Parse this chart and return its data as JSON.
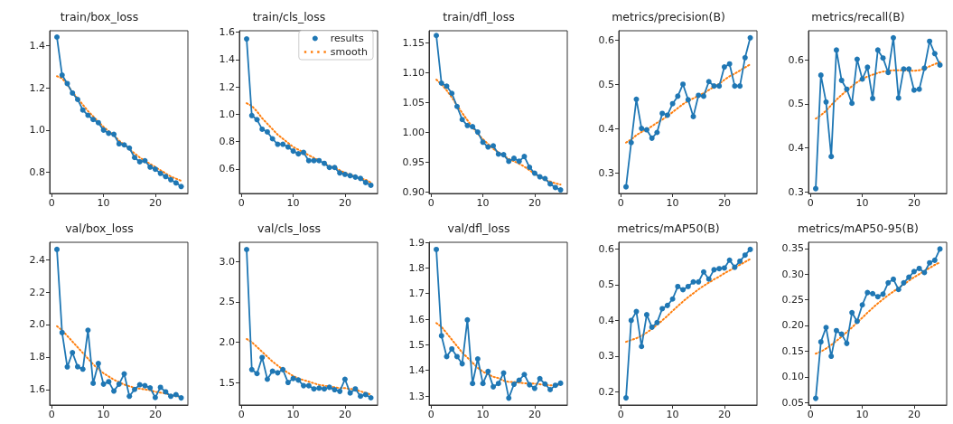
{
  "chart_data": [
    {
      "type": "line",
      "title": "train/box_loss",
      "x": [
        1,
        2,
        3,
        4,
        5,
        6,
        7,
        8,
        9,
        10,
        11,
        12,
        13,
        14,
        15,
        16,
        17,
        18,
        19,
        20,
        21,
        22,
        23,
        24,
        25
      ],
      "xlim": [
        -0.4,
        26.3
      ],
      "xticks": [
        0,
        10,
        20
      ],
      "ylim": [
        0.7,
        1.47
      ],
      "yticks": [
        0.8,
        {
          "value": 1,
          "label": "1.0"
        },
        1.2,
        1.4
      ],
      "legend": false,
      "series": [
        {
          "color": "#1f77b4",
          "marker": "circle",
          "line_style": "solid",
          "values": [
            1.44,
            1.26,
            1.22,
            1.175,
            1.145,
            1.095,
            1.07,
            1.05,
            1.035,
            1.0,
            0.985,
            0.98,
            0.935,
            0.93,
            0.915,
            0.87,
            0.85,
            0.855,
            0.825,
            0.815,
            0.795,
            0.78,
            0.765,
            0.75,
            0.733
          ]
        },
        {
          "color": "#ff7f0e",
          "marker": "none",
          "line_style": "dotted",
          "values": [
            1.255,
            1.245,
            1.215,
            1.18,
            1.15,
            1.12,
            1.09,
            1.065,
            1.04,
            1.015,
            0.995,
            0.975,
            0.95,
            0.93,
            0.91,
            0.89,
            0.87,
            0.855,
            0.84,
            0.825,
            0.81,
            0.795,
            0.78,
            0.77,
            0.76
          ]
        }
      ]
    },
    {
      "type": "line",
      "title": "train/cls_loss",
      "x": [
        1,
        2,
        3,
        4,
        5,
        6,
        7,
        8,
        9,
        10,
        11,
        12,
        13,
        14,
        15,
        16,
        17,
        18,
        19,
        20,
        21,
        22,
        23,
        24,
        25
      ],
      "xlim": [
        -0.4,
        26.3
      ],
      "xticks": [
        0,
        10,
        20
      ],
      "ylim": [
        0.42,
        1.61
      ],
      "yticks": [
        0.6,
        0.8,
        {
          "value": 1,
          "label": "1.0"
        },
        1.2,
        1.4,
        1.6
      ],
      "legend": "top right",
      "series": [
        {
          "name": "results",
          "color": "#1f77b4",
          "marker": "circle",
          "line_style": "solid",
          "values": [
            1.55,
            0.99,
            0.96,
            0.89,
            0.87,
            0.82,
            0.78,
            0.78,
            0.76,
            0.73,
            0.71,
            0.72,
            0.66,
            0.66,
            0.66,
            0.64,
            0.61,
            0.61,
            0.57,
            0.56,
            0.55,
            0.54,
            0.53,
            0.5,
            0.48
          ]
        },
        {
          "name": "smooth",
          "color": "#ff7f0e",
          "marker": "none",
          "line_style": "dotted",
          "values": [
            1.08,
            1.06,
            1.02,
            0.97,
            0.93,
            0.89,
            0.85,
            0.82,
            0.79,
            0.76,
            0.74,
            0.72,
            0.7,
            0.68,
            0.66,
            0.64,
            0.62,
            0.61,
            0.59,
            0.57,
            0.56,
            0.54,
            0.53,
            0.52,
            0.5
          ]
        }
      ]
    },
    {
      "type": "line",
      "title": "train/dfl_loss",
      "x": [
        1,
        2,
        3,
        4,
        5,
        6,
        7,
        8,
        9,
        10,
        11,
        12,
        13,
        14,
        15,
        16,
        17,
        18,
        19,
        20,
        21,
        22,
        23,
        24,
        25
      ],
      "xlim": [
        -0.4,
        26.3
      ],
      "xticks": [
        0,
        10,
        20
      ],
      "ylim": [
        0.897,
        1.17
      ],
      "yticks": [
        {
          "value": 0.9,
          "label": "0.90"
        },
        0.95,
        {
          "value": 1,
          "label": "1.00"
        },
        1.05,
        {
          "value": 1.1,
          "label": "1.10"
        },
        1.15
      ],
      "legend": false,
      "series": [
        {
          "color": "#1f77b4",
          "marker": "circle",
          "line_style": "solid",
          "values": [
            1.162,
            1.082,
            1.077,
            1.065,
            1.043,
            1.021,
            1.011,
            1.009,
            1.0,
            0.983,
            0.975,
            0.977,
            0.963,
            0.962,
            0.951,
            0.956,
            0.951,
            0.959,
            0.941,
            0.931,
            0.925,
            0.922,
            0.913,
            0.907,
            0.903
          ]
        },
        {
          "color": "#ff7f0e",
          "marker": "none",
          "line_style": "dotted",
          "values": [
            1.088,
            1.08,
            1.07,
            1.058,
            1.045,
            1.032,
            1.02,
            1.008,
            0.997,
            0.988,
            0.98,
            0.972,
            0.966,
            0.96,
            0.955,
            0.951,
            0.947,
            0.942,
            0.936,
            0.93,
            0.925,
            0.92,
            0.917,
            0.914,
            0.912
          ]
        }
      ]
    },
    {
      "type": "line",
      "title": "metrics/precision(B)",
      "x": [
        1,
        2,
        3,
        4,
        5,
        6,
        7,
        8,
        9,
        10,
        11,
        12,
        13,
        14,
        15,
        16,
        17,
        18,
        19,
        20,
        21,
        22,
        23,
        24,
        25
      ],
      "xlim": [
        -0.4,
        26.3
      ],
      "xticks": [
        0,
        10,
        20
      ],
      "ylim": [
        0.253,
        0.621
      ],
      "yticks": [
        0.3,
        0.4,
        0.5,
        0.6
      ],
      "legend": false,
      "series": [
        {
          "color": "#1f77b4",
          "marker": "circle",
          "line_style": "solid",
          "values": [
            0.268,
            0.368,
            0.466,
            0.4,
            0.397,
            0.378,
            0.391,
            0.434,
            0.43,
            0.456,
            0.473,
            0.5,
            0.465,
            0.427,
            0.475,
            0.473,
            0.506,
            0.496,
            0.496,
            0.539,
            0.546,
            0.496,
            0.496,
            0.56,
            0.605
          ]
        },
        {
          "color": "#ff7f0e",
          "marker": "none",
          "line_style": "dotted",
          "values": [
            0.368,
            0.375,
            0.385,
            0.392,
            0.398,
            0.405,
            0.413,
            0.42,
            0.428,
            0.437,
            0.446,
            0.455,
            0.462,
            0.468,
            0.474,
            0.48,
            0.487,
            0.494,
            0.501,
            0.51,
            0.518,
            0.524,
            0.531,
            0.538,
            0.545
          ]
        }
      ]
    },
    {
      "type": "line",
      "title": "metrics/recall(B)",
      "x": [
        1,
        2,
        3,
        4,
        5,
        6,
        7,
        8,
        9,
        10,
        11,
        12,
        13,
        14,
        15,
        16,
        17,
        18,
        19,
        20,
        21,
        22,
        23,
        24,
        25
      ],
      "xlim": [
        -0.4,
        26.3
      ],
      "xticks": [
        0,
        10,
        20
      ],
      "ylim": [
        0.296,
        0.666
      ],
      "yticks": [
        0.3,
        0.4,
        0.5,
        0.6
      ],
      "legend": false,
      "series": [
        {
          "color": "#1f77b4",
          "marker": "circle",
          "line_style": "solid",
          "values": [
            0.307,
            0.565,
            0.504,
            0.38,
            0.622,
            0.553,
            0.533,
            0.501,
            0.601,
            0.556,
            0.583,
            0.512,
            0.622,
            0.604,
            0.571,
            0.65,
            0.513,
            0.579,
            0.579,
            0.531,
            0.533,
            0.581,
            0.642,
            0.614,
            0.588
          ]
        },
        {
          "color": "#ff7f0e",
          "marker": "none",
          "line_style": "dotted",
          "values": [
            0.466,
            0.474,
            0.484,
            0.497,
            0.509,
            0.52,
            0.53,
            0.54,
            0.549,
            0.556,
            0.562,
            0.566,
            0.57,
            0.573,
            0.575,
            0.576,
            0.576,
            0.576,
            0.575,
            0.575,
            0.576,
            0.58,
            0.585,
            0.59,
            0.595
          ]
        }
      ]
    },
    {
      "type": "line",
      "title": "val/box_loss",
      "x": [
        1,
        2,
        3,
        4,
        5,
        6,
        7,
        8,
        9,
        10,
        11,
        12,
        13,
        14,
        15,
        16,
        17,
        18,
        19,
        20,
        21,
        22,
        23,
        24,
        25
      ],
      "xlim": [
        -0.4,
        26.3
      ],
      "xticks": [
        0,
        10,
        20
      ],
      "ylim": [
        1.504,
        2.507
      ],
      "yticks": [
        1.6,
        1.8,
        {
          "value": 2,
          "label": "2.0"
        },
        2.2,
        2.4
      ],
      "legend": false,
      "series": [
        {
          "color": "#1f77b4",
          "marker": "circle",
          "line_style": "solid",
          "values": [
            2.463,
            1.95,
            1.739,
            1.827,
            1.74,
            1.725,
            1.965,
            1.638,
            1.76,
            1.633,
            1.648,
            1.59,
            1.633,
            1.696,
            1.558,
            1.6,
            1.629,
            1.623,
            1.61,
            1.55,
            1.613,
            1.585,
            1.558,
            1.568,
            1.548
          ]
        },
        {
          "color": "#ff7f0e",
          "marker": "none",
          "line_style": "dotted",
          "values": [
            1.99,
            1.965,
            1.93,
            1.895,
            1.86,
            1.825,
            1.79,
            1.755,
            1.725,
            1.7,
            1.68,
            1.66,
            1.645,
            1.63,
            1.62,
            1.61,
            1.605,
            1.6,
            1.595,
            1.585,
            1.58,
            1.575,
            1.565,
            1.56,
            1.555
          ]
        }
      ]
    },
    {
      "type": "line",
      "title": "val/cls_loss",
      "x": [
        1,
        2,
        3,
        4,
        5,
        6,
        7,
        8,
        9,
        10,
        11,
        12,
        13,
        14,
        15,
        16,
        17,
        18,
        19,
        20,
        21,
        22,
        23,
        24,
        25
      ],
      "xlim": [
        -0.4,
        26.3
      ],
      "xticks": [
        0,
        10,
        20
      ],
      "ylim": [
        1.22,
        3.24
      ],
      "yticks": [
        1.5,
        {
          "value": 2,
          "label": "2.0"
        },
        2.5,
        {
          "value": 3,
          "label": "3.0"
        }
      ],
      "legend": false,
      "series": [
        {
          "color": "#1f77b4",
          "marker": "circle",
          "line_style": "solid",
          "values": [
            3.15,
            1.66,
            1.61,
            1.81,
            1.54,
            1.64,
            1.62,
            1.66,
            1.5,
            1.55,
            1.53,
            1.46,
            1.46,
            1.42,
            1.43,
            1.42,
            1.44,
            1.41,
            1.39,
            1.54,
            1.37,
            1.42,
            1.33,
            1.35,
            1.31
          ]
        },
        {
          "color": "#ff7f0e",
          "marker": "none",
          "line_style": "dotted",
          "values": [
            2.04,
            2.0,
            1.94,
            1.88,
            1.82,
            1.76,
            1.71,
            1.66,
            1.62,
            1.58,
            1.55,
            1.53,
            1.51,
            1.49,
            1.47,
            1.46,
            1.45,
            1.44,
            1.43,
            1.43,
            1.42,
            1.41,
            1.39,
            1.37,
            1.35
          ]
        }
      ]
    },
    {
      "type": "line",
      "title": "val/dfl_loss",
      "x": [
        1,
        2,
        3,
        4,
        5,
        6,
        7,
        8,
        9,
        10,
        11,
        12,
        13,
        14,
        15,
        16,
        17,
        18,
        19,
        20,
        21,
        22,
        23,
        24,
        25
      ],
      "xlim": [
        -0.4,
        26.3
      ],
      "xticks": [
        0,
        10,
        20
      ],
      "ylim": [
        1.265,
        1.9
      ],
      "yticks": [
        1.3,
        1.4,
        1.5,
        1.6,
        1.7,
        1.8,
        1.9
      ],
      "legend": false,
      "series": [
        {
          "color": "#1f77b4",
          "marker": "circle",
          "line_style": "solid",
          "values": [
            1.872,
            1.535,
            1.454,
            1.484,
            1.454,
            1.426,
            1.597,
            1.349,
            1.445,
            1.349,
            1.396,
            1.336,
            1.349,
            1.39,
            1.292,
            1.346,
            1.362,
            1.384,
            1.344,
            1.33,
            1.368,
            1.347,
            1.325,
            1.342,
            1.35
          ]
        },
        {
          "color": "#ff7f0e",
          "marker": "none",
          "line_style": "dotted",
          "values": [
            1.585,
            1.57,
            1.545,
            1.52,
            1.495,
            1.47,
            1.45,
            1.43,
            1.41,
            1.395,
            1.385,
            1.375,
            1.37,
            1.36,
            1.355,
            1.355,
            1.352,
            1.35,
            1.35,
            1.348,
            1.346,
            1.344,
            1.342,
            1.342,
            1.345
          ]
        }
      ]
    },
    {
      "type": "line",
      "title": "metrics/mAP50(B)",
      "x": [
        1,
        2,
        3,
        4,
        5,
        6,
        7,
        8,
        9,
        10,
        11,
        12,
        13,
        14,
        15,
        16,
        17,
        18,
        19,
        20,
        21,
        22,
        23,
        24,
        25
      ],
      "xlim": [
        -0.4,
        26.3
      ],
      "xticks": [
        0,
        10,
        20
      ],
      "ylim": [
        0.163,
        0.619
      ],
      "yticks": [
        0.2,
        0.3,
        0.4,
        0.5,
        0.6
      ],
      "legend": false,
      "series": [
        {
          "color": "#1f77b4",
          "marker": "circle",
          "line_style": "solid",
          "values": [
            0.183,
            0.4,
            0.425,
            0.327,
            0.416,
            0.381,
            0.394,
            0.433,
            0.442,
            0.46,
            0.495,
            0.486,
            0.495,
            0.508,
            0.508,
            0.536,
            0.516,
            0.542,
            0.545,
            0.547,
            0.569,
            0.549,
            0.566,
            0.583,
            0.599
          ]
        },
        {
          "color": "#ff7f0e",
          "marker": "none",
          "line_style": "dotted",
          "values": [
            0.34,
            0.345,
            0.35,
            0.357,
            0.366,
            0.376,
            0.388,
            0.4,
            0.413,
            0.427,
            0.44,
            0.453,
            0.465,
            0.476,
            0.487,
            0.497,
            0.506,
            0.515,
            0.523,
            0.532,
            0.54,
            0.548,
            0.556,
            0.564,
            0.572
          ]
        }
      ]
    },
    {
      "type": "line",
      "title": "metrics/mAP50-95(B)",
      "x": [
        1,
        2,
        3,
        4,
        5,
        6,
        7,
        8,
        9,
        10,
        11,
        12,
        13,
        14,
        15,
        16,
        17,
        18,
        19,
        20,
        21,
        22,
        23,
        24,
        25
      ],
      "xlim": [
        -0.4,
        26.3
      ],
      "xticks": [
        0,
        10,
        20
      ],
      "ylim": [
        0.045,
        0.362
      ],
      "yticks": [
        0.05,
        {
          "value": 0.1,
          "label": "0.10"
        },
        0.15,
        {
          "value": 0.2,
          "label": "0.20"
        },
        0.25,
        {
          "value": 0.3,
          "label": "0.30"
        },
        0.35
      ],
      "legend": false,
      "series": [
        {
          "color": "#1f77b4",
          "marker": "circle",
          "line_style": "solid",
          "values": [
            0.058,
            0.168,
            0.196,
            0.14,
            0.19,
            0.183,
            0.165,
            0.225,
            0.208,
            0.24,
            0.264,
            0.262,
            0.256,
            0.261,
            0.283,
            0.29,
            0.27,
            0.283,
            0.294,
            0.305,
            0.311,
            0.303,
            0.322,
            0.327,
            0.349
          ]
        },
        {
          "color": "#ff7f0e",
          "marker": "none",
          "line_style": "dotted",
          "values": [
            0.145,
            0.149,
            0.155,
            0.162,
            0.17,
            0.178,
            0.187,
            0.196,
            0.206,
            0.215,
            0.225,
            0.234,
            0.243,
            0.251,
            0.259,
            0.266,
            0.273,
            0.28,
            0.287,
            0.294,
            0.3,
            0.306,
            0.312,
            0.318,
            0.323
          ]
        }
      ]
    }
  ]
}
